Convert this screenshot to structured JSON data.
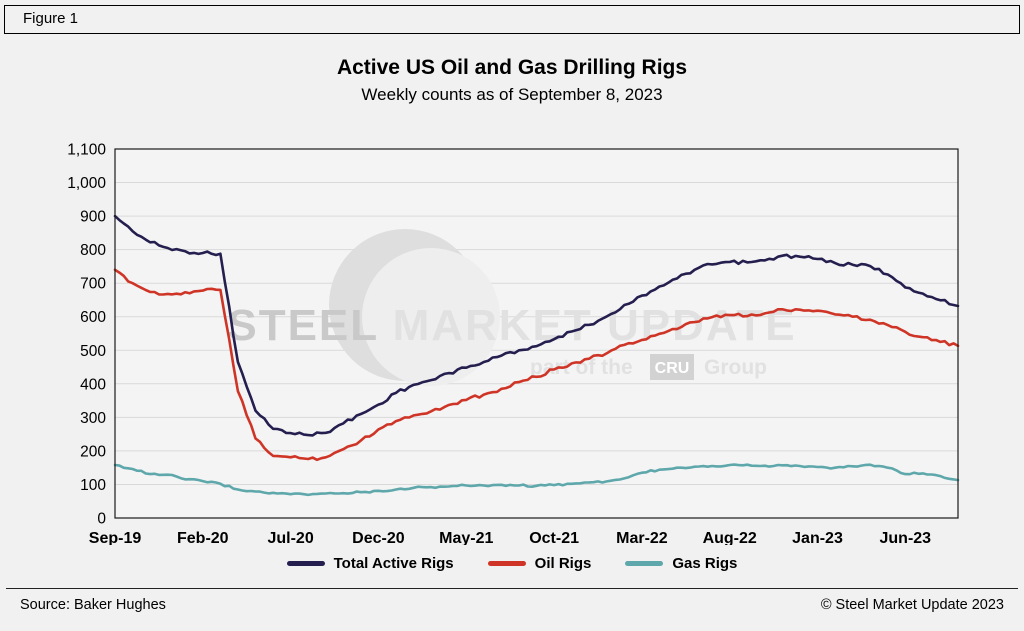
{
  "figure_label": "Figure 1",
  "title": "Active US Oil and Gas Drilling Rigs",
  "subtitle": "Weekly counts as of September 8, 2023",
  "footer": {
    "source": "Source: Baker Hughes",
    "copyright": "© Steel Market Update 2023"
  },
  "watermark": {
    "brand_bold": "STEEL ",
    "brand_rest": "MARKET UPDATE",
    "tagline_pre": "part of the",
    "tagline_box": "CRU",
    "tagline_post": "Group"
  },
  "chart_data": {
    "type": "line",
    "title": "Active US Oil and Gas Drilling Rigs",
    "subtitle": "Weekly counts as of September 8, 2023",
    "x_unit": "months since Sep-2019 (weekly counts)",
    "x_tick_labels": [
      "Sep-19",
      "Feb-20",
      "Jul-20",
      "Dec-20",
      "May-21",
      "Oct-21",
      "Mar-22",
      "Aug-22",
      "Jan-23",
      "Jun-23"
    ],
    "x_tick_positions": [
      0,
      5,
      10,
      15,
      20,
      25,
      30,
      35,
      40,
      45
    ],
    "points_per_series": 49,
    "ylim": [
      0,
      1100
    ],
    "y_tick_step": 100,
    "y_tick_labels": [
      "0",
      "100",
      "200",
      "300",
      "400",
      "500",
      "600",
      "700",
      "800",
      "900",
      "1,000",
      "1,100"
    ],
    "grid": "horizontal",
    "legend_position": "bottom",
    "series": [
      {
        "name": "Total Active Rigs",
        "color": "#241f4f",
        "values": [
          900,
          855,
          822,
          805,
          795,
          790,
          788,
          465,
          320,
          266,
          253,
          247,
          254,
          282,
          310,
          338,
          373,
          397,
          411,
          432,
          448,
          465,
          484,
          500,
          512,
          533,
          556,
          576,
          601,
          635,
          663,
          690,
          714,
          740,
          756,
          763,
          762,
          768,
          782,
          779,
          772,
          760,
          755,
          751,
          726,
          687,
          669,
          649,
          632
        ]
      },
      {
        "name": "Oil Rigs",
        "color": "#cf3527",
        "values": [
          740,
          700,
          674,
          668,
          673,
          678,
          680,
          378,
          237,
          185,
          181,
          176,
          181,
          205,
          231,
          264,
          289,
          306,
          318,
          337,
          352,
          368,
          385,
          405,
          421,
          443,
          461,
          475,
          491,
          516,
          531,
          549,
          563,
          584,
          599,
          605,
          602,
          610,
          622,
          621,
          618,
          607,
          600,
          591,
          575,
          555,
          539,
          525,
          513
        ]
      },
      {
        "name": "Gas Rigs",
        "color": "#5ea7ab",
        "values": [
          158,
          146,
          131,
          129,
          115,
          110,
          102,
          85,
          79,
          75,
          71,
          69,
          73,
          74,
          77,
          81,
          85,
          90,
          92,
          94,
          97,
          97,
          99,
          97,
          96,
          98,
          102,
          106,
          109,
          118,
          135,
          144,
          150,
          153,
          155,
          158,
          159,
          156,
          157,
          155,
          152,
          150,
          154,
          159,
          150,
          131,
          133,
          125,
          113
        ]
      }
    ]
  }
}
